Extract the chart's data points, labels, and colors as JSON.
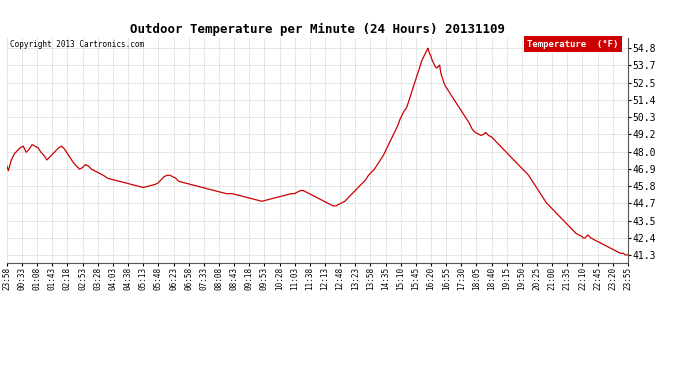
{
  "title": "Outdoor Temperature per Minute (24 Hours) 20131109",
  "copyright_text": "Copyright 2013 Cartronics.com",
  "legend_label": "Temperature  (°F)",
  "line_color": "#cc0000",
  "background_color": "#ffffff",
  "grid_color": "#999999",
  "yticks": [
    41.3,
    42.4,
    43.5,
    44.7,
    45.8,
    46.9,
    48.0,
    49.2,
    50.3,
    51.4,
    52.5,
    53.7,
    54.8
  ],
  "ymin": 40.8,
  "ymax": 55.5,
  "xtick_labels": [
    "23:58",
    "00:33",
    "01:08",
    "01:43",
    "02:18",
    "02:53",
    "03:28",
    "04:03",
    "04:38",
    "05:13",
    "05:48",
    "06:23",
    "06:58",
    "07:33",
    "08:08",
    "08:43",
    "09:18",
    "09:53",
    "10:28",
    "11:03",
    "11:38",
    "12:13",
    "12:48",
    "13:23",
    "13:58",
    "14:35",
    "15:10",
    "15:45",
    "16:20",
    "16:55",
    "17:30",
    "18:05",
    "18:40",
    "19:15",
    "19:50",
    "20:25",
    "21:00",
    "21:35",
    "22:10",
    "22:45",
    "23:20",
    "23:55"
  ],
  "data_profile": [
    [
      0,
      47.1
    ],
    [
      5,
      46.8
    ],
    [
      15,
      47.5
    ],
    [
      25,
      47.9
    ],
    [
      35,
      48.1
    ],
    [
      45,
      48.3
    ],
    [
      55,
      48.4
    ],
    [
      65,
      48.0
    ],
    [
      75,
      48.2
    ],
    [
      85,
      48.5
    ],
    [
      95,
      48.4
    ],
    [
      105,
      48.3
    ],
    [
      115,
      48.0
    ],
    [
      125,
      47.8
    ],
    [
      135,
      47.5
    ],
    [
      145,
      47.7
    ],
    [
      155,
      47.9
    ],
    [
      165,
      48.1
    ],
    [
      175,
      48.3
    ],
    [
      185,
      48.4
    ],
    [
      195,
      48.2
    ],
    [
      205,
      47.9
    ],
    [
      215,
      47.6
    ],
    [
      225,
      47.3
    ],
    [
      235,
      47.1
    ],
    [
      245,
      46.9
    ],
    [
      255,
      47.0
    ],
    [
      265,
      47.2
    ],
    [
      275,
      47.1
    ],
    [
      285,
      46.9
    ],
    [
      295,
      46.8
    ],
    [
      305,
      46.7
    ],
    [
      315,
      46.6
    ],
    [
      325,
      46.5
    ],
    [
      340,
      46.3
    ],
    [
      360,
      46.2
    ],
    [
      380,
      46.1
    ],
    [
      400,
      46.0
    ],
    [
      420,
      45.9
    ],
    [
      440,
      45.8
    ],
    [
      460,
      45.7
    ],
    [
      480,
      45.8
    ],
    [
      500,
      45.9
    ],
    [
      510,
      46.0
    ],
    [
      520,
      46.2
    ],
    [
      530,
      46.4
    ],
    [
      540,
      46.5
    ],
    [
      550,
      46.5
    ],
    [
      560,
      46.4
    ],
    [
      570,
      46.3
    ],
    [
      580,
      46.1
    ],
    [
      600,
      46.0
    ],
    [
      620,
      45.9
    ],
    [
      640,
      45.8
    ],
    [
      660,
      45.7
    ],
    [
      680,
      45.6
    ],
    [
      700,
      45.5
    ],
    [
      720,
      45.4
    ],
    [
      740,
      45.3
    ],
    [
      760,
      45.3
    ],
    [
      780,
      45.2
    ],
    [
      800,
      45.1
    ],
    [
      820,
      45.0
    ],
    [
      840,
      44.9
    ],
    [
      860,
      44.8
    ],
    [
      880,
      44.9
    ],
    [
      900,
      45.0
    ],
    [
      920,
      45.1
    ],
    [
      940,
      45.2
    ],
    [
      960,
      45.3
    ],
    [
      970,
      45.3
    ],
    [
      980,
      45.4
    ],
    [
      990,
      45.5
    ],
    [
      1000,
      45.5
    ],
    [
      1010,
      45.4
    ],
    [
      1020,
      45.3
    ],
    [
      1030,
      45.2
    ],
    [
      1040,
      45.1
    ],
    [
      1050,
      45.0
    ],
    [
      1060,
      44.9
    ],
    [
      1070,
      44.8
    ],
    [
      1080,
      44.7
    ],
    [
      1090,
      44.6
    ],
    [
      1100,
      44.5
    ],
    [
      1110,
      44.5
    ],
    [
      1120,
      44.6
    ],
    [
      1130,
      44.7
    ],
    [
      1140,
      44.8
    ],
    [
      1150,
      45.0
    ],
    [
      1160,
      45.2
    ],
    [
      1170,
      45.4
    ],
    [
      1180,
      45.6
    ],
    [
      1190,
      45.8
    ],
    [
      1200,
      46.0
    ],
    [
      1210,
      46.2
    ],
    [
      1220,
      46.5
    ],
    [
      1230,
      46.7
    ],
    [
      1240,
      46.9
    ],
    [
      1250,
      47.2
    ],
    [
      1260,
      47.5
    ],
    [
      1270,
      47.8
    ],
    [
      1280,
      48.2
    ],
    [
      1290,
      48.6
    ],
    [
      1300,
      49.0
    ],
    [
      1310,
      49.4
    ],
    [
      1320,
      49.8
    ],
    [
      1325,
      50.1
    ],
    [
      1330,
      50.3
    ],
    [
      1335,
      50.5
    ],
    [
      1340,
      50.7
    ],
    [
      1345,
      50.8
    ],
    [
      1350,
      51.0
    ],
    [
      1355,
      51.3
    ],
    [
      1360,
      51.6
    ],
    [
      1365,
      51.9
    ],
    [
      1370,
      52.2
    ],
    [
      1375,
      52.5
    ],
    [
      1380,
      52.8
    ],
    [
      1385,
      53.1
    ],
    [
      1390,
      53.4
    ],
    [
      1395,
      53.7
    ],
    [
      1400,
      54.0
    ],
    [
      1405,
      54.2
    ],
    [
      1410,
      54.4
    ],
    [
      1415,
      54.6
    ],
    [
      1418,
      54.7
    ],
    [
      1420,
      54.8
    ],
    [
      1422,
      54.7
    ],
    [
      1425,
      54.5
    ],
    [
      1430,
      54.3
    ],
    [
      1435,
      54.0
    ],
    [
      1440,
      53.8
    ],
    [
      1445,
      53.6
    ],
    [
      1450,
      53.5
    ],
    [
      1455,
      53.6
    ],
    [
      1460,
      53.7
    ],
    [
      1462,
      53.4
    ],
    [
      1465,
      53.1
    ],
    [
      1470,
      52.8
    ],
    [
      1475,
      52.5
    ],
    [
      1480,
      52.3
    ],
    [
      1490,
      52.0
    ],
    [
      1500,
      51.7
    ],
    [
      1510,
      51.4
    ],
    [
      1520,
      51.1
    ],
    [
      1530,
      50.8
    ],
    [
      1540,
      50.5
    ],
    [
      1550,
      50.2
    ],
    [
      1560,
      49.9
    ],
    [
      1565,
      49.7
    ],
    [
      1570,
      49.5
    ],
    [
      1580,
      49.3
    ],
    [
      1590,
      49.2
    ],
    [
      1600,
      49.1
    ],
    [
      1610,
      49.2
    ],
    [
      1615,
      49.3
    ],
    [
      1620,
      49.2
    ],
    [
      1625,
      49.1
    ],
    [
      1635,
      49.0
    ],
    [
      1640,
      48.9
    ],
    [
      1650,
      48.7
    ],
    [
      1660,
      48.5
    ],
    [
      1670,
      48.3
    ],
    [
      1680,
      48.1
    ],
    [
      1690,
      47.9
    ],
    [
      1700,
      47.7
    ],
    [
      1710,
      47.5
    ],
    [
      1720,
      47.3
    ],
    [
      1730,
      47.1
    ],
    [
      1740,
      46.9
    ],
    [
      1750,
      46.7
    ],
    [
      1760,
      46.5
    ],
    [
      1770,
      46.2
    ],
    [
      1780,
      45.9
    ],
    [
      1790,
      45.6
    ],
    [
      1800,
      45.3
    ],
    [
      1810,
      45.0
    ],
    [
      1820,
      44.7
    ],
    [
      1830,
      44.5
    ],
    [
      1840,
      44.3
    ],
    [
      1850,
      44.1
    ],
    [
      1860,
      43.9
    ],
    [
      1870,
      43.7
    ],
    [
      1880,
      43.5
    ],
    [
      1890,
      43.3
    ],
    [
      1900,
      43.1
    ],
    [
      1910,
      42.9
    ],
    [
      1920,
      42.7
    ],
    [
      1930,
      42.6
    ],
    [
      1940,
      42.5
    ],
    [
      1945,
      42.4
    ],
    [
      1950,
      42.4
    ],
    [
      1955,
      42.5
    ],
    [
      1960,
      42.6
    ],
    [
      1965,
      42.5
    ],
    [
      1970,
      42.4
    ],
    [
      1980,
      42.3
    ],
    [
      1990,
      42.2
    ],
    [
      2000,
      42.1
    ],
    [
      2010,
      42.0
    ],
    [
      2020,
      41.9
    ],
    [
      2030,
      41.8
    ],
    [
      2040,
      41.7
    ],
    [
      2050,
      41.6
    ],
    [
      2060,
      41.5
    ],
    [
      2070,
      41.4
    ],
    [
      2080,
      41.4
    ],
    [
      2085,
      41.3
    ],
    [
      2095,
      41.3
    ]
  ]
}
